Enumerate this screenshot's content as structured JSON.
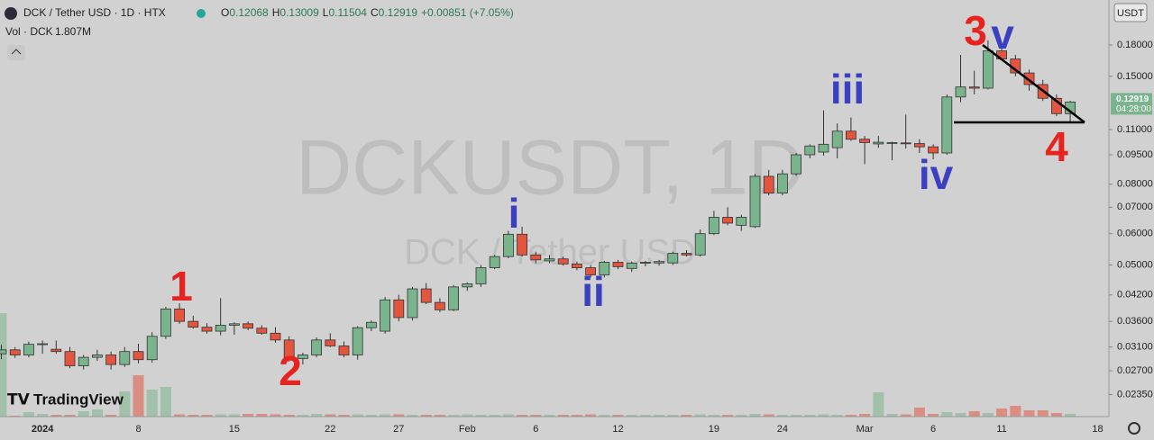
{
  "header": {
    "symbol_title": "DCK / Tether USD · 1D · HTX",
    "ohlc_labels": [
      "O",
      "H",
      "L",
      "C"
    ],
    "change": "+0.00851 (+7.05%)",
    "volume_title": "Vol · DCK",
    "last_volume_label": "1.807M",
    "currency": "USDT",
    "countdown": "04:28:00",
    "brand": "TradingView"
  },
  "chart_data": {
    "type": "candlestick",
    "watermark": "DCKUSDT, 1D",
    "watermark_subtitle": "DCK / Tether USD",
    "log_scale": true,
    "up_color": "#7ab48c",
    "down_color": "#e2553f",
    "ylim": [
      0.021,
      0.234
    ],
    "yticks": [
      {
        "value": 0.18,
        "label": "0.18000"
      },
      {
        "value": 0.15,
        "label": "0.15000"
      },
      {
        "value": 0.11,
        "label": "0.11000"
      },
      {
        "value": 0.095,
        "label": "0.09500"
      },
      {
        "value": 0.08,
        "label": "0.08000"
      },
      {
        "value": 0.07,
        "label": "0.07000"
      },
      {
        "value": 0.06,
        "label": "0.06000"
      },
      {
        "value": 0.05,
        "label": "0.05000"
      },
      {
        "value": 0.042,
        "label": "0.04200"
      },
      {
        "value": 0.036,
        "label": "0.03600"
      },
      {
        "value": 0.031,
        "label": "0.03100"
      },
      {
        "value": 0.027,
        "label": "0.02700"
      },
      {
        "value": 0.0235,
        "label": "0.02350"
      }
    ],
    "categories": [
      null,
      null,
      null,
      "2024",
      null,
      null,
      null,
      null,
      null,
      null,
      "8",
      null,
      null,
      null,
      null,
      null,
      null,
      "15",
      null,
      null,
      null,
      null,
      null,
      null,
      "22",
      null,
      null,
      null,
      null,
      "27",
      null,
      null,
      null,
      null,
      "Feb",
      null,
      null,
      null,
      null,
      "6",
      null,
      null,
      null,
      null,
      null,
      "12",
      null,
      null,
      null,
      null,
      null,
      null,
      "19",
      null,
      null,
      null,
      null,
      "24",
      null,
      null,
      null,
      null,
      null,
      "Mar",
      null,
      null,
      null,
      null,
      "6",
      null,
      null,
      null,
      null,
      "11",
      null,
      null,
      null,
      null,
      null,
      null,
      "18"
    ],
    "open": [
      0.0298,
      0.0305,
      0.0296,
      0.0315,
      0.0306,
      0.0302,
      0.0278,
      0.0292,
      0.0296,
      0.028,
      0.0302,
      0.0288,
      0.033,
      0.0387,
      0.036,
      0.0348,
      0.034,
      0.0352,
      0.0355,
      0.0346,
      0.0336,
      0.0323,
      0.029,
      0.0296,
      0.0323,
      0.0312,
      0.0296,
      0.0347,
      0.034,
      0.0408,
      0.0368,
      0.0435,
      0.0402,
      0.0385,
      0.044,
      0.0448,
      0.0492,
      0.0525,
      0.0598,
      0.053,
      0.0512,
      0.0518,
      0.0503,
      0.0492,
      0.0472,
      0.0508,
      0.049,
      0.0505,
      0.0506,
      0.0506,
      0.0535,
      0.053,
      0.06,
      0.066,
      0.063,
      0.0625,
      0.0838,
      0.076,
      0.085,
      0.095,
      0.0965,
      0.099,
      0.109,
      0.104,
      0.1012,
      0.1015,
      0.1018,
      0.1014,
      0.0995,
      0.096,
      0.133,
      0.141,
      0.14,
      0.174,
      0.166,
      0.153,
      0.143,
      0.132,
      0.12068,
      null,
      null
    ],
    "high": [
      0.0314,
      0.031,
      0.032,
      0.0322,
      0.0322,
      0.031,
      0.0296,
      0.0305,
      0.0302,
      0.031,
      0.0316,
      0.0338,
      0.0392,
      0.04,
      0.0372,
      0.0356,
      0.0412,
      0.0358,
      0.036,
      0.0352,
      0.0348,
      0.033,
      0.03,
      0.0328,
      0.0336,
      0.032,
      0.035,
      0.0362,
      0.0415,
      0.042,
      0.044,
      0.045,
      0.0412,
      0.0445,
      0.0452,
      0.05,
      0.053,
      0.061,
      0.0625,
      0.054,
      0.053,
      0.0525,
      0.051,
      0.05,
      0.0512,
      0.0515,
      0.051,
      0.0512,
      0.0515,
      0.054,
      0.0545,
      0.0615,
      0.0685,
      0.07,
      0.067,
      0.085,
      0.087,
      0.087,
      0.096,
      0.101,
      0.123,
      0.114,
      0.118,
      0.106,
      0.106,
      0.1025,
      0.12,
      0.104,
      0.101,
      0.135,
      0.17,
      0.155,
      0.185,
      0.183,
      0.17,
      0.156,
      0.147,
      0.135,
      0.13009,
      null,
      null
    ],
    "low": [
      0.0289,
      0.0291,
      0.0292,
      0.0298,
      0.0298,
      0.0274,
      0.0272,
      0.0286,
      0.0272,
      0.0276,
      0.0282,
      0.0283,
      0.0325,
      0.0355,
      0.0345,
      0.0335,
      0.0332,
      0.0333,
      0.0342,
      0.0333,
      0.0318,
      0.0285,
      0.028,
      0.0292,
      0.031,
      0.0292,
      0.0288,
      0.034,
      0.0335,
      0.036,
      0.0362,
      0.0398,
      0.038,
      0.0382,
      0.043,
      0.044,
      0.0488,
      0.052,
      0.0525,
      0.0505,
      0.0505,
      0.0498,
      0.0485,
      0.0465,
      0.0465,
      0.0488,
      0.048,
      0.0496,
      0.0498,
      0.05,
      0.0525,
      0.0525,
      0.0595,
      0.063,
      0.061,
      0.062,
      0.075,
      0.075,
      0.084,
      0.093,
      0.0945,
      0.093,
      0.103,
      0.09,
      0.099,
      0.092,
      0.0985,
      0.096,
      0.0925,
      0.095,
      0.129,
      0.135,
      0.139,
      0.165,
      0.15,
      0.138,
      0.13,
      0.119,
      0.11504,
      null,
      null
    ],
    "close": [
      0.0305,
      0.0296,
      0.0315,
      0.0316,
      0.0302,
      0.0278,
      0.0292,
      0.0296,
      0.028,
      0.0302,
      0.0288,
      0.033,
      0.0387,
      0.036,
      0.0348,
      0.034,
      0.0352,
      0.0355,
      0.0346,
      0.0336,
      0.0323,
      0.0292,
      0.0296,
      0.0323,
      0.0312,
      0.0296,
      0.0347,
      0.0358,
      0.0408,
      0.0368,
      0.0435,
      0.0402,
      0.0385,
      0.044,
      0.0448,
      0.0492,
      0.0525,
      0.0598,
      0.053,
      0.0515,
      0.0518,
      0.0503,
      0.0492,
      0.0472,
      0.0508,
      0.0495,
      0.0505,
      0.0508,
      0.051,
      0.0535,
      0.053,
      0.06,
      0.066,
      0.0638,
      0.066,
      0.0838,
      0.076,
      0.085,
      0.095,
      0.1,
      0.101,
      0.109,
      0.104,
      0.102,
      0.1022,
      0.102,
      0.1014,
      0.0995,
      0.096,
      0.133,
      0.141,
      0.14,
      0.174,
      0.166,
      0.153,
      0.143,
      0.132,
      0.1207,
      0.12919,
      null,
      null
    ],
    "volume": [
      69,
      0.6,
      3,
      1.8,
      1.2,
      1.2,
      3.6,
      4.8,
      1.2,
      16.8,
      27.6,
      18,
      19.8,
      1.5,
      1.2,
      1.2,
      1.5,
      1.5,
      1.8,
      1.8,
      1.5,
      1.2,
      1.2,
      1.8,
      1.5,
      1.2,
      1.5,
      1.2,
      1.5,
      1.5,
      1.2,
      1.2,
      1.2,
      1.2,
      1.5,
      1.2,
      1.2,
      1.5,
      1.2,
      1.2,
      1.2,
      1.2,
      1.2,
      1.5,
      1.2,
      1.2,
      1.2,
      1.2,
      1.2,
      1.2,
      1.2,
      1.5,
      1.2,
      1.2,
      1.2,
      1.8,
      1.5,
      1.2,
      1.2,
      1.2,
      1.5,
      1.2,
      1.2,
      1.8,
      16.2,
      1.8,
      1.5,
      6,
      1.8,
      3,
      2.4,
      3.6,
      2.4,
      5.4,
      7.2,
      4.2,
      4.2,
      2.4,
      1.807,
      null,
      null
    ],
    "annotations": [
      {
        "text": "1",
        "color": "#e8231f"
      },
      {
        "text": "2",
        "color": "#e8231f"
      },
      {
        "text": "3",
        "color": "#e8231f"
      },
      {
        "text": "4",
        "color": "#e8231f"
      },
      {
        "text": "i",
        "color": "#3b40c0"
      },
      {
        "text": "ii",
        "color": "#3b40c0"
      },
      {
        "text": "iii",
        "color": "#3b40c0"
      },
      {
        "text": "iv",
        "color": "#3b40c0"
      },
      {
        "text": "v",
        "color": "#3b40c0"
      }
    ]
  }
}
